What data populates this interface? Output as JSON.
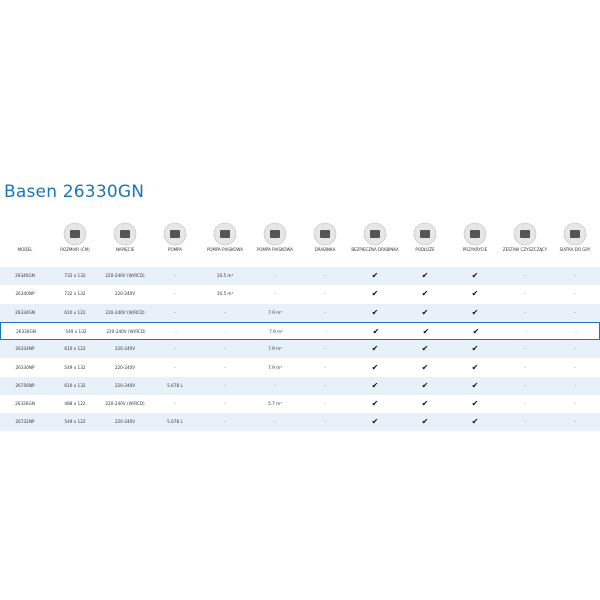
{
  "title": "Basen 26330GN",
  "table": {
    "headers": [
      "MODEL",
      "ROZMIAR (CM)",
      "NAPIĘCIE",
      "POMPA",
      "POMPA PIASKOWA",
      "POMPA PIASKOWA",
      "DRABINKA",
      "BEZPIECZNA DRABINKA",
      "PODŁOŻE",
      "PRZYKRYCIE",
      "ZESTAW CZYSZCZĄCY",
      "SIATKA DO GRY"
    ],
    "rows": [
      [
        "26340GN",
        "732 x 132",
        "220-240V (W/RCD)",
        "-",
        "10.5 m³",
        "-",
        "-",
        "✔",
        "✔",
        "✔",
        "-",
        "-"
      ],
      [
        "26340NP",
        "732 x 132",
        "220-240V",
        "-",
        "10.5 m³",
        "-",
        "-",
        "✔",
        "✔",
        "✔",
        "-",
        "-"
      ],
      [
        "26334GN",
        "610 x 122",
        "220-240V (W/RCD)",
        "-",
        "-",
        "7.9 m³",
        "-",
        "✔",
        "✔",
        "✔",
        "-",
        "-"
      ],
      [
        "26330GN",
        "549 x 132",
        "220-240V (W/RCD)",
        "-",
        "-",
        "7.9 m³",
        "-",
        "✔",
        "✔",
        "✔",
        "-",
        "-"
      ],
      [
        "26334NP",
        "610 x 122",
        "220-240V",
        "-",
        "-",
        "7.9 m³",
        "-",
        "✔",
        "✔",
        "✔",
        "-",
        "-"
      ],
      [
        "26330NP",
        "549 x 132",
        "220-240V",
        "-",
        "-",
        "7.9 m³",
        "-",
        "✔",
        "✔",
        "✔",
        "-",
        "-"
      ],
      [
        "26756NP",
        "610 x 132",
        "220-240V",
        "5.678 L",
        "-",
        "-",
        "-",
        "✔",
        "✔",
        "✔",
        "-",
        "-"
      ],
      [
        "26326GN",
        "488 x 122",
        "220-240V (W/RCD)",
        "-",
        "-",
        "5.7 m³",
        "-",
        "✔",
        "✔",
        "✔",
        "-",
        "-"
      ],
      [
        "26732NP",
        "549 x 122",
        "220-240V",
        "5.678 L",
        "-",
        "-",
        "-",
        "✔",
        "✔",
        "✔",
        "-",
        "-"
      ]
    ]
  }
}
